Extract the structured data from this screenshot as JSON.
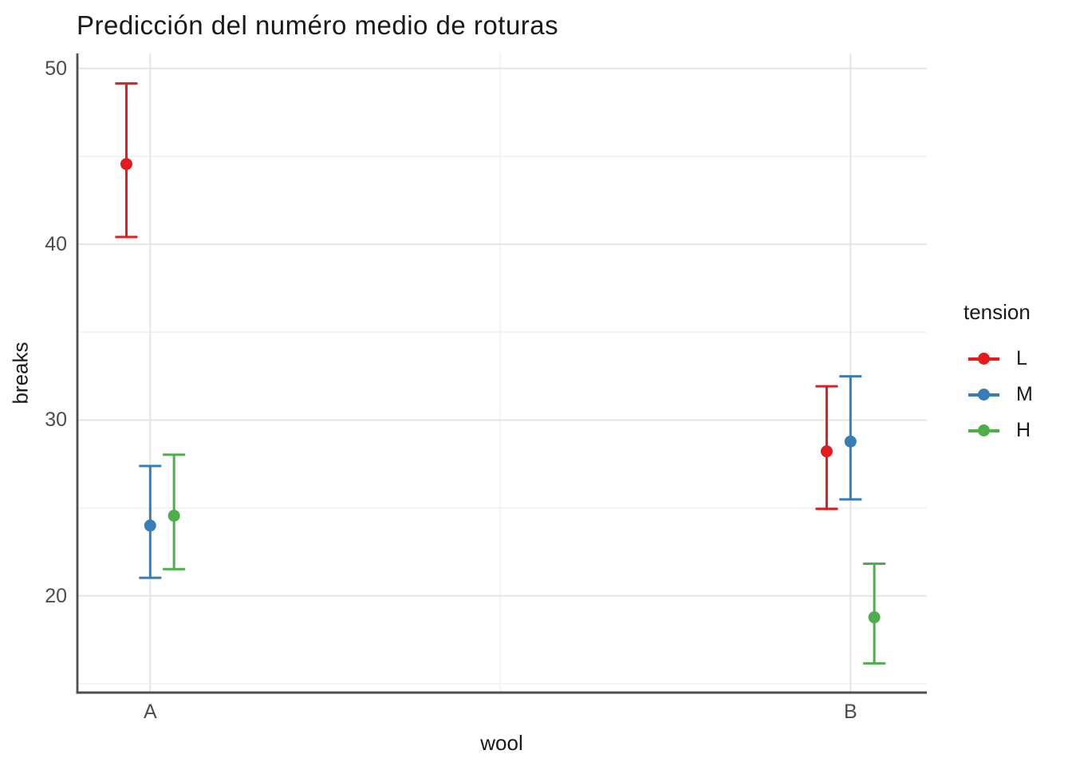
{
  "chart_data": {
    "type": "pointrange",
    "title": "Predicción del numéro medio de roturas",
    "xlabel": "wool",
    "ylabel": "breaks",
    "categories": [
      "A",
      "B"
    ],
    "category_positions": [
      1,
      2
    ],
    "xlim": [
      0.896,
      2.109
    ],
    "ylim": [
      14.5,
      50.85
    ],
    "yticks": [
      20,
      30,
      40,
      50
    ],
    "yticks_minor": [
      15,
      25,
      35,
      45
    ],
    "xticks_minor_positions": [
      1.5
    ],
    "grid": "major+minor",
    "legend_position": "right",
    "dodge_offsets": {
      "L": -0.034,
      "M": 0,
      "H": 0.034
    },
    "series": [
      {
        "name": "L",
        "color": "#E41A1C",
        "offset": -0.034,
        "points": [
          {
            "category": "A",
            "mean": 44.56,
            "lower": 40.41,
            "upper": 49.14
          },
          {
            "category": "B",
            "mean": 28.22,
            "lower": 24.95,
            "upper": 31.92
          }
        ]
      },
      {
        "name": "M",
        "color": "#377EB8",
        "offset": 0,
        "points": [
          {
            "category": "A",
            "mean": 24.0,
            "lower": 21.03,
            "upper": 27.39
          },
          {
            "category": "B",
            "mean": 28.78,
            "lower": 25.49,
            "upper": 32.49
          }
        ]
      },
      {
        "name": "H",
        "color": "#4DAF4A",
        "offset": 0.034,
        "points": [
          {
            "category": "A",
            "mean": 24.56,
            "lower": 21.52,
            "upper": 28.03
          },
          {
            "category": "B",
            "mean": 18.78,
            "lower": 16.16,
            "upper": 21.83
          }
        ]
      }
    ]
  },
  "legend": {
    "title": "tension",
    "entries": [
      {
        "label": "L",
        "color": "#E41A1C"
      },
      {
        "label": "M",
        "color": "#377EB8"
      },
      {
        "label": "H",
        "color": "#4DAF4A"
      }
    ]
  },
  "colors": {
    "background": "#ffffff",
    "axis_line": "#4f4f4f",
    "grid_major": "#e5e5e5",
    "grid_minor": "#f2f2f2",
    "tick_label": "#4d4d4d",
    "title_text": "#1a1a1a"
  }
}
